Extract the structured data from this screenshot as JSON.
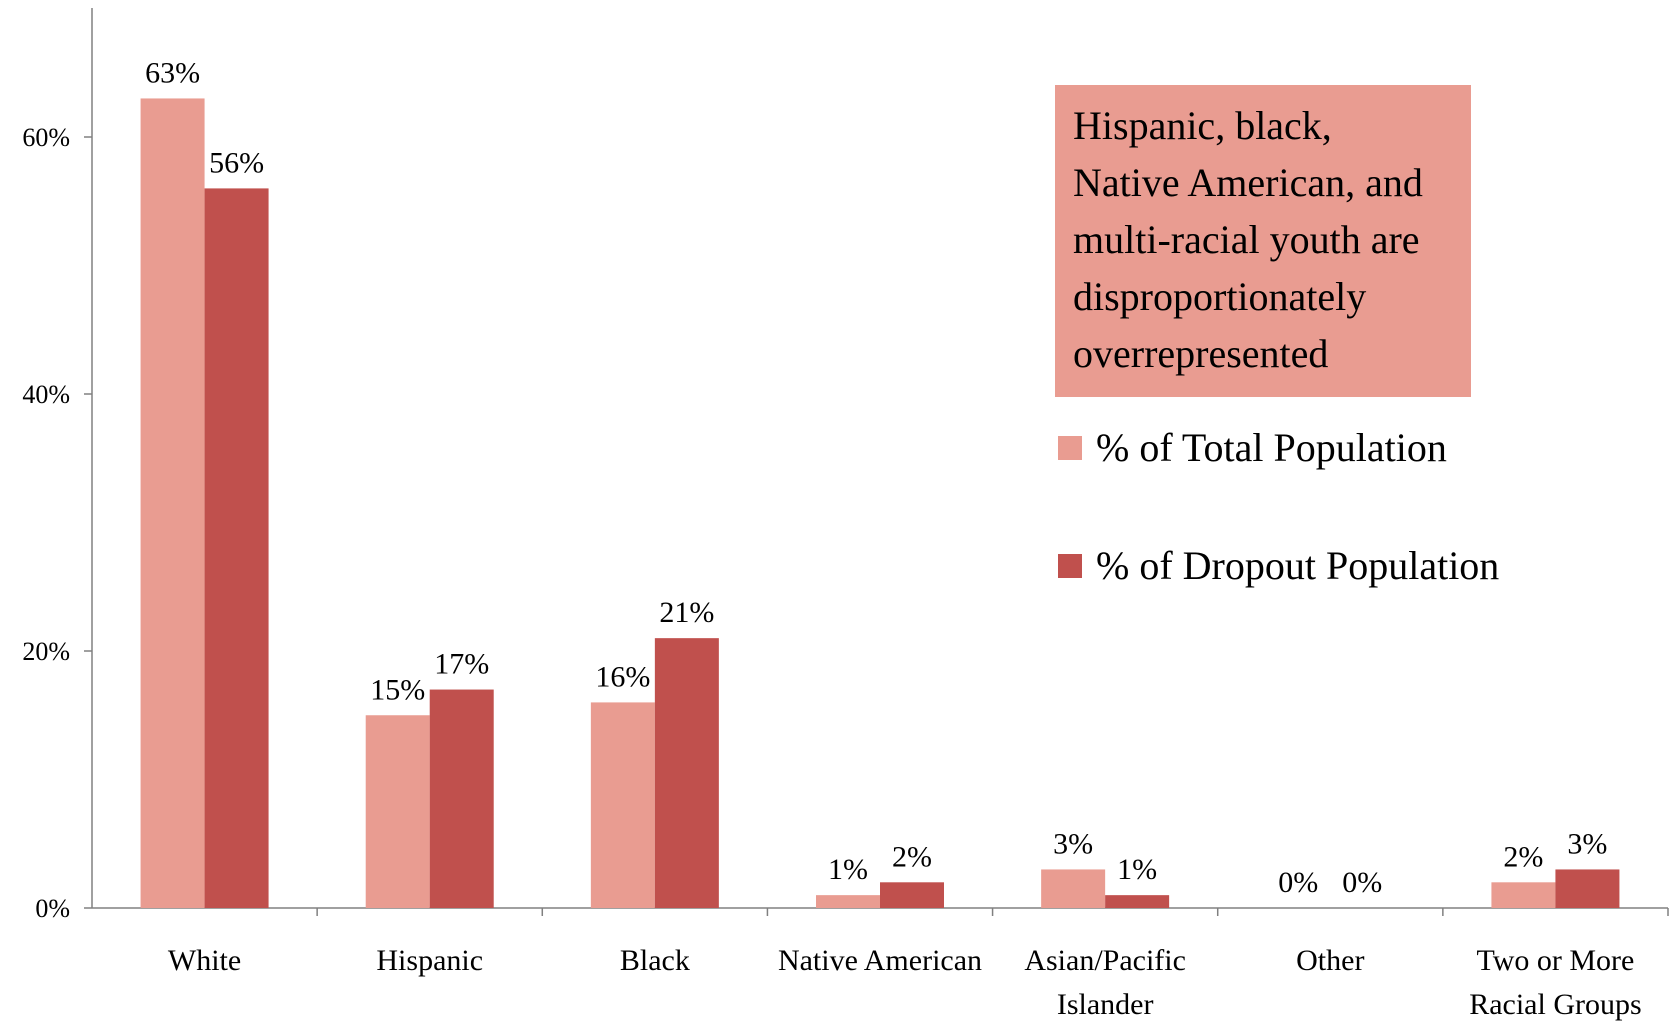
{
  "chart_data": {
    "type": "bar",
    "title": "",
    "xlabel": "",
    "ylabel": "",
    "ylim": [
      0,
      70
    ],
    "yticks": [
      0,
      20,
      40,
      60
    ],
    "ytick_labels": [
      "0%",
      "20%",
      "40%",
      "60%"
    ],
    "grid": false,
    "legend_position": "right",
    "categories": [
      [
        "White"
      ],
      [
        "Hispanic"
      ],
      [
        "Black"
      ],
      [
        "Native American"
      ],
      [
        "Asian/Pacific",
        "Islander"
      ],
      [
        "Other"
      ],
      [
        "Two or More",
        "Racial Groups"
      ]
    ],
    "series": [
      {
        "name": "% of Total Population",
        "color": "#e99c91",
        "values": [
          63,
          15,
          16,
          1,
          3,
          0,
          2
        ],
        "labels": [
          "63%",
          "15%",
          "16%",
          "1%",
          "3%",
          "0%",
          "2%"
        ]
      },
      {
        "name": "% of Dropout Population",
        "color": "#c0504d",
        "values": [
          56,
          17,
          21,
          2,
          1,
          0,
          3
        ],
        "labels": [
          "56%",
          "17%",
          "21%",
          "2%",
          "1%",
          "0%",
          "3%"
        ]
      }
    ],
    "annotation": {
      "text": "Hispanic, black, Native American, and multi-racial youth are disproportionately overrepresented",
      "lines": [
        "Hispanic, black,",
        "Native American, and",
        "multi-racial youth are",
        "disproportionately",
        "overrepresented"
      ],
      "background": "#e99c91"
    }
  }
}
